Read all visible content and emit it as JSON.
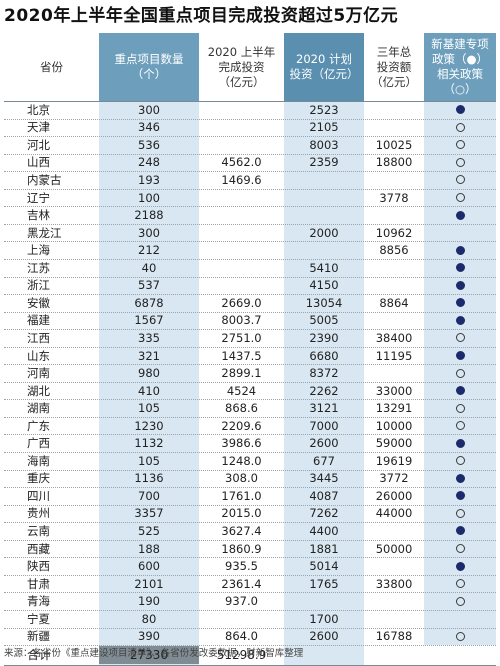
{
  "title": "2020年上半年全国重点项目完成投资超过5万亿元",
  "headers": {
    "province": "省份",
    "count": "重点项目数量\n（个）",
    "h1_invest": "2020 上半年\n完成投资\n（亿元）",
    "plan_invest": "2020 计划\n投资（亿元）",
    "total_invest": "三年总\n投资额\n（亿元）",
    "policy": "新基建专项\n政策（●）\n相关政策\n（○）"
  },
  "rows": [
    {
      "province": "北京",
      "count": "300",
      "h1": "",
      "plan": "2523",
      "total": "",
      "policy": "filled"
    },
    {
      "province": "天津",
      "count": "346",
      "h1": "",
      "plan": "2105",
      "total": "",
      "policy": "open"
    },
    {
      "province": "河北",
      "count": "536",
      "h1": "",
      "plan": "8003",
      "total": "10025",
      "policy": "open"
    },
    {
      "province": "山西",
      "count": "248",
      "h1": "4562.0",
      "plan": "2359",
      "total": "18800",
      "policy": "open"
    },
    {
      "province": "内蒙古",
      "count": "193",
      "h1": "1469.6",
      "plan": "",
      "total": "",
      "policy": "open"
    },
    {
      "province": "辽宁",
      "count": "100",
      "h1": "",
      "plan": "",
      "total": "3778",
      "policy": "open"
    },
    {
      "province": "吉林",
      "count": "2188",
      "h1": "",
      "plan": "",
      "total": "",
      "policy": "filled"
    },
    {
      "province": "黑龙江",
      "count": "300",
      "h1": "",
      "plan": "2000",
      "total": "10962",
      "policy": "none"
    },
    {
      "province": "上海",
      "count": "212",
      "h1": "",
      "plan": "",
      "total": "8856",
      "policy": "filled"
    },
    {
      "province": "江苏",
      "count": "40",
      "h1": "",
      "plan": "5410",
      "total": "",
      "policy": "filled"
    },
    {
      "province": "浙江",
      "count": "537",
      "h1": "",
      "plan": "4150",
      "total": "",
      "policy": "filled"
    },
    {
      "province": "安徽",
      "count": "6878",
      "h1": "2669.0",
      "plan": "13054",
      "total": "8864",
      "policy": "filled"
    },
    {
      "province": "福建",
      "count": "1567",
      "h1": "8003.7",
      "plan": "5005",
      "total": "",
      "policy": "filled"
    },
    {
      "province": "江西",
      "count": "335",
      "h1": "2751.0",
      "plan": "2390",
      "total": "38400",
      "policy": "open"
    },
    {
      "province": "山东",
      "count": "321",
      "h1": "1437.5",
      "plan": "6680",
      "total": "11195",
      "policy": "filled"
    },
    {
      "province": "河南",
      "count": "980",
      "h1": "2899.1",
      "plan": "8372",
      "total": "",
      "policy": "open"
    },
    {
      "province": "湖北",
      "count": "410",
      "h1": "4524",
      "plan": "2262",
      "total": "33000",
      "policy": "filled"
    },
    {
      "province": "湖南",
      "count": "105",
      "h1": "868.6",
      "plan": "3121",
      "total": "13291",
      "policy": "open"
    },
    {
      "province": "广东",
      "count": "1230",
      "h1": "2209.6",
      "plan": "7000",
      "total": "10000",
      "policy": "open"
    },
    {
      "province": "广西",
      "count": "1132",
      "h1": "3986.6",
      "plan": "2600",
      "total": "59000",
      "policy": "filled"
    },
    {
      "province": "海南",
      "count": "105",
      "h1": "1248.0",
      "plan": "677",
      "total": "19619",
      "policy": "open"
    },
    {
      "province": "重庆",
      "count": "1136",
      "h1": "308.0",
      "plan": "3445",
      "total": "3772",
      "policy": "filled"
    },
    {
      "province": "四川",
      "count": "700",
      "h1": "1761.0",
      "plan": "4087",
      "total": "26000",
      "policy": "filled"
    },
    {
      "province": "贵州",
      "count": "3357",
      "h1": "2015.0",
      "plan": "7262",
      "total": "44000",
      "policy": "open"
    },
    {
      "province": "云南",
      "count": "525",
      "h1": "3627.4",
      "plan": "4400",
      "total": "",
      "policy": "filled"
    },
    {
      "province": "西藏",
      "count": "188",
      "h1": "1860.9",
      "plan": "1881",
      "total": "50000",
      "policy": "open"
    },
    {
      "province": "陕西",
      "count": "600",
      "h1": "935.5",
      "plan": "5014",
      "total": "",
      "policy": "filled"
    },
    {
      "province": "甘肃",
      "count": "2101",
      "h1": "2361.4",
      "plan": "1765",
      "total": "33800",
      "policy": "open"
    },
    {
      "province": "青海",
      "count": "190",
      "h1": "937.0",
      "plan": "",
      "total": "",
      "policy": "open"
    },
    {
      "province": "宁夏",
      "count": "80",
      "h1": "",
      "plan": "1700",
      "total": "",
      "policy": "none"
    },
    {
      "province": "新疆",
      "count": "390",
      "h1": "864.0",
      "plan": "2600",
      "total": "16788",
      "policy": "open"
    }
  ],
  "total": {
    "label": "合计",
    "count": "27330",
    "h1": "51298.9"
  },
  "source": "来源：各省份《重点建设项目清单》、各省份发改委数据，财新智库整理",
  "colors": {
    "light_blue": "#d8e7f1",
    "dark_blue": "#6d9fbd",
    "header_mid": "#5b8fb0",
    "total_box": "#7f8c93",
    "dot_filled": "#1b2b6b"
  }
}
